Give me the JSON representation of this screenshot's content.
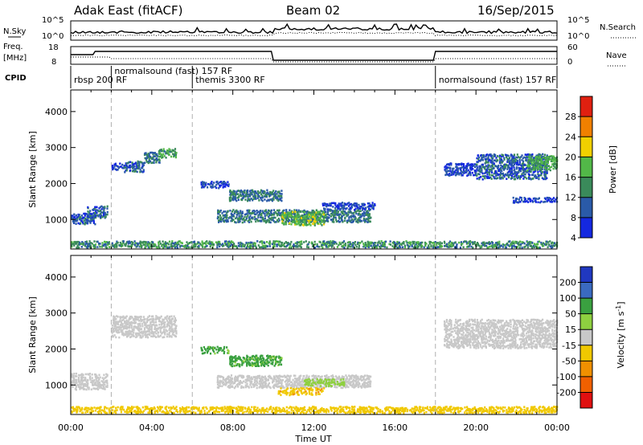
{
  "header": {
    "title": "Adak East (fitACF)",
    "beam": "Beam 02",
    "date": "16/Sep/2015"
  },
  "top_panels": {
    "nsky": {
      "left_label": "N.Sky",
      "right_label": "N.Search",
      "ticks_left": [
        "10^5",
        "10^0"
      ],
      "ticks_right": [
        "10^5",
        "10^0"
      ]
    },
    "freq": {
      "left_label_1": "Freq.",
      "left_label_2": "[MHz]",
      "right_label": "Nave",
      "ticks_left": [
        "18",
        "8"
      ],
      "ticks_right": [
        "60",
        "0"
      ]
    },
    "cpid": {
      "label": "CPID",
      "segments": [
        {
          "label": "rbsp  200  RF",
          "start_h": 0
        },
        {
          "label": "normalsound  (fast)  157  RF",
          "start_h": 2
        },
        {
          "label": "themis  3300  RF",
          "start_h": 6
        },
        {
          "label": "normalsound  (fast)  157  RF",
          "start_h": 18
        }
      ]
    }
  },
  "chart_data": [
    {
      "type": "heatmap",
      "name": "power",
      "ylabel": "Slant Range [km]",
      "xlabel": "Time UT",
      "x_ticklabels": [
        "00:00",
        "04:00",
        "08:00",
        "12:00",
        "16:00",
        "20:00",
        "00:00"
      ],
      "y_ticklabels": [
        "1000",
        "2000",
        "3000",
        "4000"
      ],
      "ylim": [
        180,
        4600
      ],
      "xlim_hours": [
        0,
        24
      ],
      "colorbar": {
        "label": "Power [dB]",
        "ticks": [
          "4",
          "8",
          "12",
          "16",
          "20",
          "24",
          "28"
        ],
        "colors": [
          "#1428e0",
          "#2a5aa8",
          "#3a8a5a",
          "#52b848",
          "#f0d000",
          "#f08000",
          "#e02010"
        ]
      },
      "blobs": [
        {
          "t0": 0.0,
          "t1": 1.2,
          "r0": 850,
          "r1": 1150,
          "level": 8
        },
        {
          "t0": 0.8,
          "t1": 1.8,
          "r0": 1000,
          "r1": 1350,
          "level": 8
        },
        {
          "t0": 2.0,
          "t1": 2.6,
          "r0": 2350,
          "r1": 2550,
          "level": 6
        },
        {
          "t0": 2.6,
          "t1": 3.6,
          "r0": 2300,
          "r1": 2600,
          "level": 8
        },
        {
          "t0": 3.6,
          "t1": 4.4,
          "r0": 2550,
          "r1": 2850,
          "level": 10
        },
        {
          "t0": 4.3,
          "t1": 5.2,
          "r0": 2700,
          "r1": 2950,
          "level": 12
        },
        {
          "t0": 6.4,
          "t1": 7.8,
          "r0": 1850,
          "r1": 2050,
          "level": 6
        },
        {
          "t0": 7.8,
          "t1": 10.4,
          "r0": 1500,
          "r1": 1800,
          "level": 10
        },
        {
          "t0": 7.2,
          "t1": 14.8,
          "r0": 900,
          "r1": 1250,
          "level": 10
        },
        {
          "t0": 10.4,
          "t1": 12.5,
          "r0": 820,
          "r1": 1200,
          "level": 16
        },
        {
          "t0": 12.4,
          "t1": 15.0,
          "r0": 1250,
          "r1": 1450,
          "level": 6
        },
        {
          "t0": 18.4,
          "t1": 20.0,
          "r0": 2200,
          "r1": 2550,
          "level": 6
        },
        {
          "t0": 20.0,
          "t1": 23.5,
          "r0": 2100,
          "r1": 2800,
          "level": 8
        },
        {
          "t0": 22.5,
          "t1": 24.0,
          "r0": 2350,
          "r1": 2750,
          "level": 14
        },
        {
          "t0": 21.8,
          "t1": 24.0,
          "r0": 1450,
          "r1": 1600,
          "level": 6
        },
        {
          "t0": 0.0,
          "t1": 24.0,
          "r0": 200,
          "r1": 380,
          "level": 12
        }
      ]
    },
    {
      "type": "heatmap",
      "name": "velocity",
      "ylabel": "Slant Range [km]",
      "xlabel": "Time UT",
      "x_ticklabels": [
        "00:00",
        "04:00",
        "08:00",
        "12:00",
        "16:00",
        "20:00",
        "00:00"
      ],
      "y_ticklabels": [
        "1000",
        "2000",
        "3000",
        "4000"
      ],
      "ylim": [
        180,
        4600
      ],
      "xlim_hours": [
        0,
        24
      ],
      "colorbar": {
        "label": "Velocity [m s^-1]",
        "ticks": [
          "200",
          "100",
          "50",
          "15",
          "-15",
          "-50",
          "-100",
          "-200"
        ],
        "colors": [
          "#2038c0",
          "#3a6ac0",
          "#3aa040",
          "#8ed040",
          "#c8c8c8",
          "#f0c800",
          "#f09000",
          "#f06000",
          "#e01010"
        ]
      },
      "blobs": [
        {
          "t0": 0.0,
          "t1": 1.8,
          "r0": 850,
          "r1": 1300,
          "level": 0
        },
        {
          "t0": 2.0,
          "t1": 5.2,
          "r0": 2300,
          "r1": 2900,
          "level": 0
        },
        {
          "t0": 6.4,
          "t1": 7.8,
          "r0": 1850,
          "r1": 2050,
          "level": 60
        },
        {
          "t0": 7.8,
          "t1": 10.4,
          "r0": 1500,
          "r1": 1800,
          "level": 60
        },
        {
          "t0": 7.2,
          "t1": 14.8,
          "r0": 900,
          "r1": 1250,
          "level": 0
        },
        {
          "t0": 10.2,
          "t1": 12.5,
          "r0": 700,
          "r1": 900,
          "level": -40
        },
        {
          "t0": 11.5,
          "t1": 13.5,
          "r0": 950,
          "r1": 1150,
          "level": 30
        },
        {
          "t0": 18.4,
          "t1": 24.0,
          "r0": 2000,
          "r1": 2800,
          "level": 0
        },
        {
          "t0": 0.0,
          "t1": 24.0,
          "r0": 200,
          "r1": 380,
          "level": -30
        }
      ]
    }
  ]
}
